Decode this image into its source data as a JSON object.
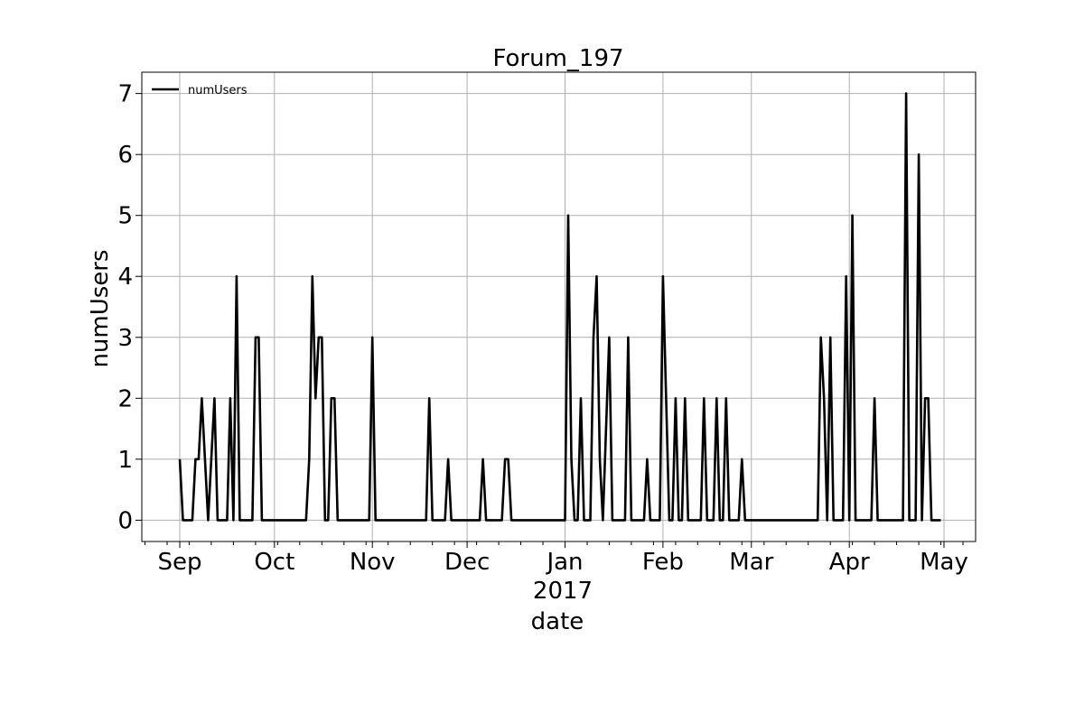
{
  "chart_data": {
    "type": "line",
    "title": "Forum_197",
    "xlabel": "date",
    "ylabel": "numUsers",
    "year_label": "2017",
    "grid": true,
    "legend_position": "top-left",
    "xlim": [
      "2016-08-20",
      "2017-05-11"
    ],
    "ylim": [
      -0.35,
      7.35
    ],
    "x_ticks": [
      {
        "date": "2016-09-01",
        "label": "Sep"
      },
      {
        "date": "2016-10-01",
        "label": "Oct"
      },
      {
        "date": "2016-11-01",
        "label": "Nov"
      },
      {
        "date": "2016-12-01",
        "label": "Dec"
      },
      {
        "date": "2017-01-01",
        "label": "Jan"
      },
      {
        "date": "2017-02-01",
        "label": "Feb"
      },
      {
        "date": "2017-03-01",
        "label": "Mar"
      },
      {
        "date": "2017-04-01",
        "label": "Apr"
      },
      {
        "date": "2017-05-01",
        "label": "May"
      }
    ],
    "y_ticks": [
      0,
      1,
      2,
      3,
      4,
      5,
      6,
      7
    ],
    "series": [
      {
        "name": "numUsers",
        "color": "#000000",
        "points": [
          [
            "2016-09-01",
            1
          ],
          [
            "2016-09-02",
            0
          ],
          [
            "2016-09-05",
            0
          ],
          [
            "2016-09-06",
            1
          ],
          [
            "2016-09-07",
            1
          ],
          [
            "2016-09-08",
            2
          ],
          [
            "2016-09-10",
            0
          ],
          [
            "2016-09-12",
            2
          ],
          [
            "2016-09-13",
            0
          ],
          [
            "2016-09-16",
            0
          ],
          [
            "2016-09-17",
            2
          ],
          [
            "2016-09-18",
            0
          ],
          [
            "2016-09-19",
            4
          ],
          [
            "2016-09-20",
            0
          ],
          [
            "2016-09-24",
            0
          ],
          [
            "2016-09-25",
            3
          ],
          [
            "2016-09-26",
            3
          ],
          [
            "2016-09-27",
            0
          ],
          [
            "2016-10-11",
            0
          ],
          [
            "2016-10-12",
            1
          ],
          [
            "2016-10-13",
            4
          ],
          [
            "2016-10-14",
            2
          ],
          [
            "2016-10-15",
            3
          ],
          [
            "2016-10-16",
            3
          ],
          [
            "2016-10-17",
            0
          ],
          [
            "2016-10-18",
            0
          ],
          [
            "2016-10-19",
            2
          ],
          [
            "2016-10-20",
            2
          ],
          [
            "2016-10-21",
            0
          ],
          [
            "2016-10-31",
            0
          ],
          [
            "2016-11-01",
            3
          ],
          [
            "2016-11-02",
            0
          ],
          [
            "2016-11-18",
            0
          ],
          [
            "2016-11-19",
            2
          ],
          [
            "2016-11-20",
            0
          ],
          [
            "2016-11-24",
            0
          ],
          [
            "2016-11-25",
            1
          ],
          [
            "2016-11-26",
            0
          ],
          [
            "2016-12-05",
            0
          ],
          [
            "2016-12-06",
            1
          ],
          [
            "2016-12-07",
            0
          ],
          [
            "2016-12-12",
            0
          ],
          [
            "2016-12-13",
            1
          ],
          [
            "2016-12-14",
            1
          ],
          [
            "2016-12-15",
            0
          ],
          [
            "2016-12-31",
            0
          ],
          [
            "2017-01-01",
            0
          ],
          [
            "2017-01-02",
            5
          ],
          [
            "2017-01-03",
            1
          ],
          [
            "2017-01-04",
            0
          ],
          [
            "2017-01-05",
            0
          ],
          [
            "2017-01-06",
            2
          ],
          [
            "2017-01-07",
            0
          ],
          [
            "2017-01-09",
            0
          ],
          [
            "2017-01-10",
            3
          ],
          [
            "2017-01-11",
            4
          ],
          [
            "2017-01-12",
            1
          ],
          [
            "2017-01-13",
            0
          ],
          [
            "2017-01-15",
            3
          ],
          [
            "2017-01-16",
            0
          ],
          [
            "2017-01-20",
            0
          ],
          [
            "2017-01-21",
            3
          ],
          [
            "2017-01-22",
            0
          ],
          [
            "2017-01-26",
            0
          ],
          [
            "2017-01-27",
            1
          ],
          [
            "2017-01-28",
            0
          ],
          [
            "2017-01-31",
            0
          ],
          [
            "2017-02-01",
            4
          ],
          [
            "2017-02-02",
            2
          ],
          [
            "2017-02-03",
            0
          ],
          [
            "2017-02-04",
            0
          ],
          [
            "2017-02-05",
            2
          ],
          [
            "2017-02-06",
            0
          ],
          [
            "2017-02-07",
            0
          ],
          [
            "2017-02-08",
            2
          ],
          [
            "2017-02-09",
            0
          ],
          [
            "2017-02-13",
            0
          ],
          [
            "2017-02-14",
            2
          ],
          [
            "2017-02-15",
            0
          ],
          [
            "2017-02-17",
            0
          ],
          [
            "2017-02-18",
            2
          ],
          [
            "2017-02-19",
            0
          ],
          [
            "2017-02-20",
            0
          ],
          [
            "2017-02-21",
            2
          ],
          [
            "2017-02-22",
            0
          ],
          [
            "2017-02-25",
            0
          ],
          [
            "2017-02-26",
            1
          ],
          [
            "2017-02-27",
            0
          ],
          [
            "2017-03-22",
            0
          ],
          [
            "2017-03-23",
            3
          ],
          [
            "2017-03-24",
            2
          ],
          [
            "2017-03-25",
            0
          ],
          [
            "2017-03-26",
            3
          ],
          [
            "2017-03-27",
            0
          ],
          [
            "2017-03-30",
            0
          ],
          [
            "2017-03-31",
            4
          ],
          [
            "2017-04-01",
            0
          ],
          [
            "2017-04-02",
            5
          ],
          [
            "2017-04-03",
            0
          ],
          [
            "2017-04-08",
            0
          ],
          [
            "2017-04-09",
            2
          ],
          [
            "2017-04-10",
            0
          ],
          [
            "2017-04-18",
            0
          ],
          [
            "2017-04-19",
            7
          ],
          [
            "2017-04-20",
            0
          ],
          [
            "2017-04-22",
            0
          ],
          [
            "2017-04-23",
            6
          ],
          [
            "2017-04-24",
            0
          ],
          [
            "2017-04-25",
            2
          ],
          [
            "2017-04-26",
            2
          ],
          [
            "2017-04-27",
            0
          ],
          [
            "2017-04-30",
            0
          ]
        ]
      }
    ]
  }
}
